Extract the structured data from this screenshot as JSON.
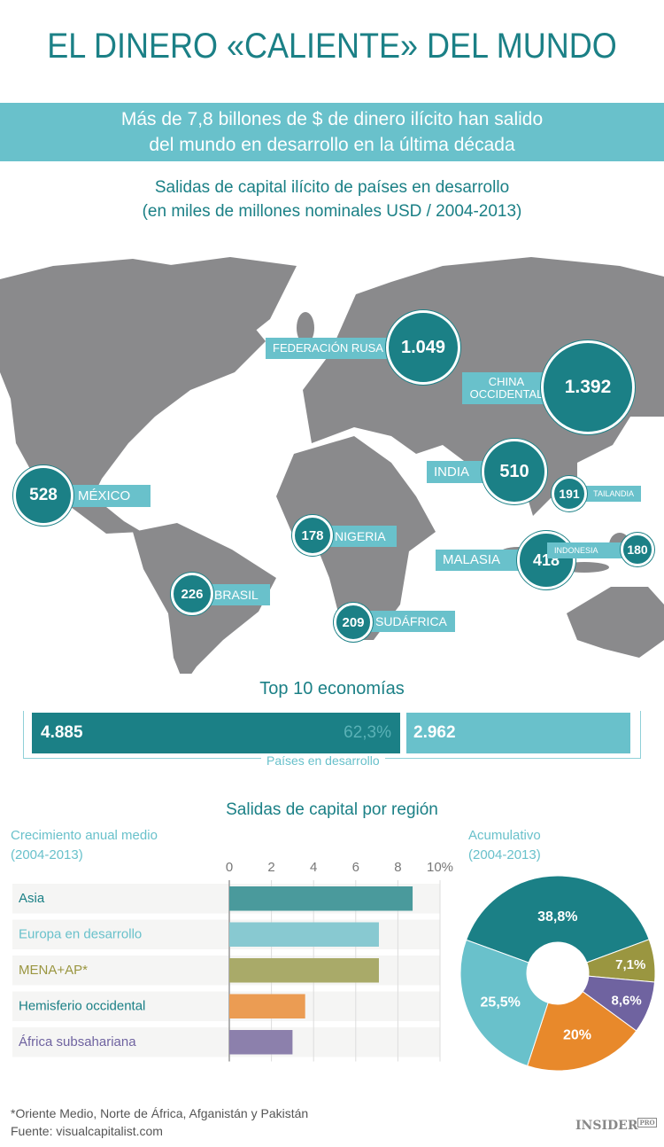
{
  "header": {
    "title": "EL DINERO «CALIENTE» DEL MUNDO",
    "banner_line1": "Más de 7,8 billones de $ de dinero ilícito han salido",
    "banner_line2": "del mundo en desarrollo en la última década",
    "subtitle_line1": "Salidas de capital ilícito de países en desarrollo",
    "subtitle_line2": "(en miles de millones nominales USD / 2004-2013)"
  },
  "map": {
    "countries": [
      {
        "name": "FEDERACIÓN RUSA",
        "value": "1.049"
      },
      {
        "name": "CHINA OCCIDENTAL",
        "value": "1.392"
      },
      {
        "name": "INDIA",
        "value": "510"
      },
      {
        "name": "TAILANDIA",
        "value": "191"
      },
      {
        "name": "MALASIA",
        "value": "418"
      },
      {
        "name": "INDONESIA",
        "value": "180"
      },
      {
        "name": "MÉXICO",
        "value": "528"
      },
      {
        "name": "NIGERIA",
        "value": "178"
      },
      {
        "name": "BRASIL",
        "value": "226"
      },
      {
        "name": "SUDÁFRICA",
        "value": "209"
      }
    ]
  },
  "top10": {
    "title": "Top 10 economías",
    "top10_value": "4.885",
    "top10_share": "62,3%",
    "rest_value": "2.962",
    "caption": "Países en desarrollo"
  },
  "colors": {
    "teal": "#1b8086",
    "light_blue": "#69c1cb",
    "olive": "#9a9640",
    "orange": "#e8892b",
    "purple": "#6f63a0"
  },
  "chart_data": [
    {
      "type": "bar",
      "orientation": "horizontal",
      "title": "Crecimiento anual medio",
      "subtitle": "(2004-2013)",
      "categories": [
        "Asia",
        "Europa en desarrollo",
        "MENA+AP*",
        "Hemisferio occidental",
        "África subsahariana"
      ],
      "values": [
        8.7,
        7.1,
        7.1,
        3.6,
        3.0
      ],
      "colors": [
        "#4a9a9c",
        "#88c9d1",
        "#a9aa69",
        "#eb9c53",
        "#8c80ac"
      ],
      "xlim": [
        0,
        10
      ],
      "ticks": [
        "0",
        "2",
        "4",
        "6",
        "8",
        "10%"
      ],
      "grid": true
    },
    {
      "type": "pie",
      "donut": true,
      "title": "Acumulativo",
      "subtitle": "(2004-2013)",
      "values": [
        38.8,
        7.1,
        8.6,
        20,
        25.5
      ],
      "labels": [
        "38,8%",
        "7,1%",
        "8,6%",
        "20%",
        "25,5%"
      ],
      "colors": [
        "#1b8086",
        "#9a9640",
        "#6f63a0",
        "#e8892b",
        "#69c1cb"
      ]
    }
  ],
  "section": {
    "title": "Salidas de capital por región"
  },
  "footer": {
    "note": "*Oriente Medio, Norte de África, Afganistán y Pakistán",
    "source": "Fuente: visualcapitalist.com",
    "logo": "INSIDER PRO"
  }
}
